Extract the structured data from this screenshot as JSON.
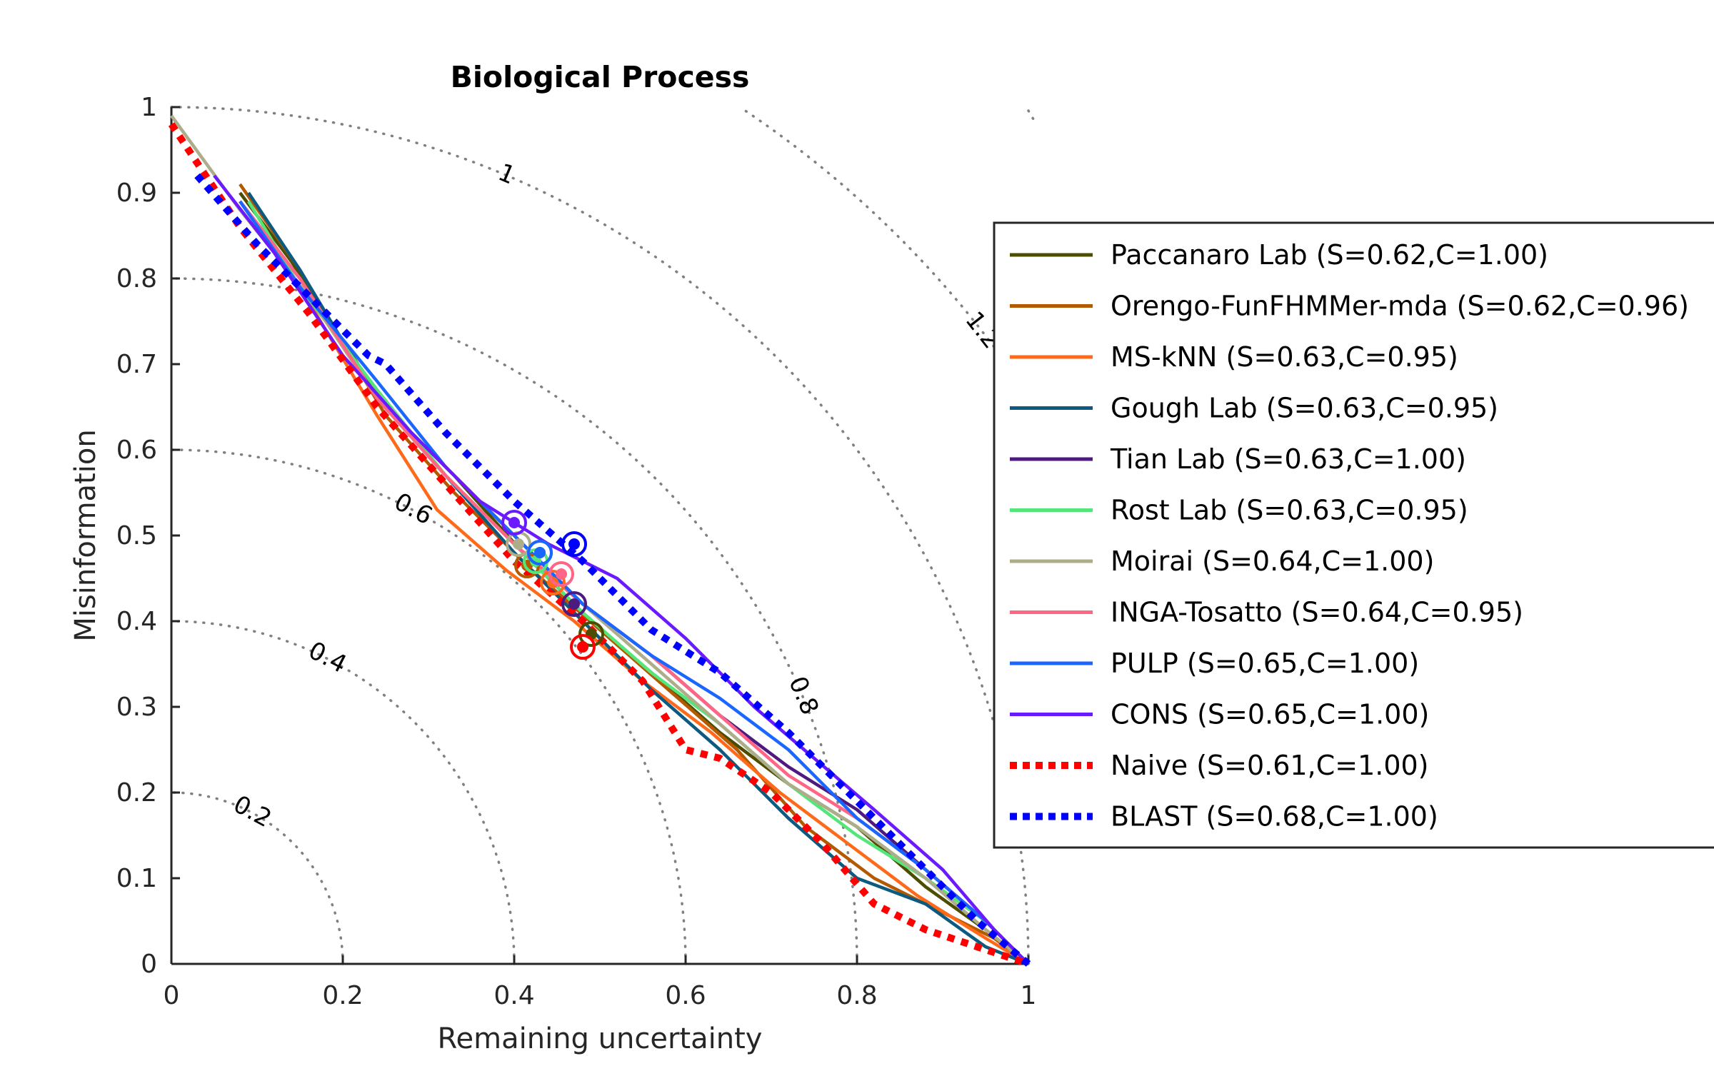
{
  "chart_data": {
    "type": "line",
    "title": "Biological Process",
    "xlabel": "Remaining uncertainty",
    "ylabel": "Misinformation",
    "xlim": [
      0,
      1
    ],
    "ylim": [
      0,
      1
    ],
    "x_ticks": [
      "0",
      "0.2",
      "0.4",
      "0.6",
      "0.8",
      "1"
    ],
    "y_ticks": [
      "0",
      "0.1",
      "0.2",
      "0.3",
      "0.4",
      "0.5",
      "0.6",
      "0.7",
      "0.8",
      "0.9",
      "1"
    ],
    "grid": false,
    "legend_position": "right",
    "contours": [
      {
        "radius": 0.2,
        "label": "0.2"
      },
      {
        "radius": 0.4,
        "label": "0.4"
      },
      {
        "radius": 0.6,
        "label": "0.6"
      },
      {
        "radius": 0.8,
        "label": "0.8"
      },
      {
        "radius": 1.0,
        "label": "1"
      },
      {
        "radius": 1.2,
        "label": "1.2"
      }
    ],
    "series": [
      {
        "name": "Paccanaro Lab (S=0.62,C=1.00)",
        "color": "#4d4d00",
        "style": "solid",
        "x": [
          0.08,
          0.14,
          0.25,
          0.33,
          0.41,
          0.49,
          0.56,
          0.64,
          0.72,
          0.8,
          0.88,
          0.95,
          1.0
        ],
        "y": [
          0.9,
          0.82,
          0.65,
          0.57,
          0.48,
          0.4,
          0.34,
          0.27,
          0.21,
          0.16,
          0.09,
          0.04,
          0.0
        ],
        "marker": {
          "x": 0.49,
          "y": 0.385
        }
      },
      {
        "name": "Orengo-FunFHMMer-mda (S=0.62,C=0.96)",
        "color": "#b35900",
        "style": "solid",
        "x": [
          0.08,
          0.15,
          0.25,
          0.33,
          0.42,
          0.5,
          0.58,
          0.66,
          0.74,
          0.82,
          0.9,
          0.96,
          1.0
        ],
        "y": [
          0.91,
          0.81,
          0.64,
          0.55,
          0.46,
          0.39,
          0.32,
          0.25,
          0.16,
          0.1,
          0.06,
          0.03,
          0.0
        ],
        "marker": {
          "x": 0.415,
          "y": 0.465
        }
      },
      {
        "name": "MS-kNN (S=0.63,C=0.95)",
        "color": "#ff6a1a",
        "style": "solid",
        "x": [
          0.08,
          0.15,
          0.24,
          0.31,
          0.39,
          0.47,
          0.55,
          0.63,
          0.71,
          0.79,
          0.87,
          0.95,
          1.0
        ],
        "y": [
          0.89,
          0.79,
          0.64,
          0.53,
          0.46,
          0.4,
          0.33,
          0.27,
          0.2,
          0.14,
          0.08,
          0.03,
          0.0
        ],
        "marker": {
          "x": 0.445,
          "y": 0.445
        }
      },
      {
        "name": "Gough Lab (S=0.63,C=0.95)",
        "color": "#0d5a80",
        "style": "solid",
        "x": [
          0.09,
          0.15,
          0.24,
          0.32,
          0.4,
          0.48,
          0.56,
          0.64,
          0.72,
          0.8,
          0.88,
          0.95,
          1.0
        ],
        "y": [
          0.9,
          0.81,
          0.66,
          0.57,
          0.48,
          0.4,
          0.32,
          0.25,
          0.17,
          0.1,
          0.07,
          0.02,
          0.0
        ],
        "marker": {
          "x": 0.43,
          "y": 0.48
        }
      },
      {
        "name": "Tian Lab (S=0.63,C=1.00)",
        "color": "#4d1a80",
        "style": "solid",
        "x": [
          0.08,
          0.15,
          0.24,
          0.32,
          0.4,
          0.48,
          0.56,
          0.64,
          0.72,
          0.8,
          0.88,
          0.95,
          1.0
        ],
        "y": [
          0.89,
          0.8,
          0.66,
          0.58,
          0.5,
          0.42,
          0.36,
          0.29,
          0.23,
          0.18,
          0.11,
          0.05,
          0.0
        ],
        "marker": {
          "x": 0.47,
          "y": 0.42
        }
      },
      {
        "name": "Rost Lab (S=0.63,C=0.95)",
        "color": "#55e67a",
        "style": "solid",
        "x": [
          0.09,
          0.15,
          0.24,
          0.32,
          0.4,
          0.48,
          0.56,
          0.64,
          0.72,
          0.8,
          0.88,
          0.95,
          1.0
        ],
        "y": [
          0.89,
          0.79,
          0.67,
          0.57,
          0.49,
          0.41,
          0.34,
          0.28,
          0.21,
          0.15,
          0.1,
          0.05,
          0.0
        ],
        "marker": {
          "x": 0.425,
          "y": 0.47
        }
      },
      {
        "name": "Moirai (S=0.64,C=1.00)",
        "color": "#adad8a",
        "style": "solid",
        "x": [
          0.0,
          0.08,
          0.16,
          0.24,
          0.32,
          0.4,
          0.48,
          0.56,
          0.64,
          0.72,
          0.8,
          0.88,
          0.95,
          1.0
        ],
        "y": [
          0.99,
          0.88,
          0.78,
          0.66,
          0.57,
          0.49,
          0.42,
          0.35,
          0.28,
          0.21,
          0.16,
          0.1,
          0.04,
          0.0
        ],
        "marker": {
          "x": 0.405,
          "y": 0.49
        }
      },
      {
        "name": "INGA-Tosatto (S=0.64,C=0.95)",
        "color": "#ff6685",
        "style": "solid",
        "x": [
          0.08,
          0.15,
          0.24,
          0.32,
          0.4,
          0.48,
          0.56,
          0.64,
          0.72,
          0.8,
          0.88,
          0.95,
          1.0
        ],
        "y": [
          0.89,
          0.8,
          0.66,
          0.57,
          0.49,
          0.42,
          0.36,
          0.29,
          0.22,
          0.17,
          0.11,
          0.05,
          0.0
        ],
        "marker": {
          "x": 0.455,
          "y": 0.455
        }
      },
      {
        "name": "PULP (S=0.65,C=1.00)",
        "color": "#1a66ff",
        "style": "solid",
        "x": [
          0.08,
          0.15,
          0.24,
          0.32,
          0.4,
          0.48,
          0.56,
          0.64,
          0.72,
          0.8,
          0.88,
          0.95,
          1.0
        ],
        "y": [
          0.89,
          0.79,
          0.68,
          0.58,
          0.5,
          0.42,
          0.36,
          0.31,
          0.25,
          0.17,
          0.11,
          0.05,
          0.0
        ],
        "marker": {
          "x": 0.43,
          "y": 0.48
        }
      },
      {
        "name": "CONS (S=0.65,C=1.00)",
        "color": "#6b1aff",
        "style": "solid",
        "x": [
          0.05,
          0.12,
          0.2,
          0.28,
          0.36,
          0.44,
          0.52,
          0.6,
          0.68,
          0.75,
          0.82,
          0.9,
          0.96,
          1.0
        ],
        "y": [
          0.92,
          0.83,
          0.71,
          0.62,
          0.54,
          0.49,
          0.45,
          0.38,
          0.3,
          0.24,
          0.18,
          0.11,
          0.04,
          0.0
        ],
        "marker": {
          "x": 0.4,
          "y": 0.515
        }
      },
      {
        "name": "Naive (S=0.61,C=1.00)",
        "color": "#ff0000",
        "style": "dotted",
        "x": [
          0.0,
          0.08,
          0.16,
          0.24,
          0.32,
          0.4,
          0.48,
          0.55,
          0.6,
          0.64,
          0.7,
          0.76,
          0.82,
          0.88,
          0.94,
          1.0
        ],
        "y": [
          0.98,
          0.86,
          0.76,
          0.65,
          0.56,
          0.47,
          0.4,
          0.33,
          0.25,
          0.24,
          0.2,
          0.14,
          0.07,
          0.04,
          0.02,
          0.0
        ],
        "marker": {
          "x": 0.48,
          "y": 0.37
        }
      },
      {
        "name": "BLAST (S=0.68,C=1.00)",
        "color": "#0000ff",
        "style": "dotted",
        "x": [
          0.03,
          0.1,
          0.17,
          0.23,
          0.25,
          0.32,
          0.4,
          0.48,
          0.56,
          0.64,
          0.72,
          0.8,
          0.88,
          0.94,
          1.0
        ],
        "y": [
          0.92,
          0.84,
          0.77,
          0.71,
          0.7,
          0.62,
          0.54,
          0.47,
          0.39,
          0.34,
          0.27,
          0.19,
          0.11,
          0.05,
          0.0
        ],
        "marker": {
          "x": 0.47,
          "y": 0.49
        }
      }
    ]
  }
}
